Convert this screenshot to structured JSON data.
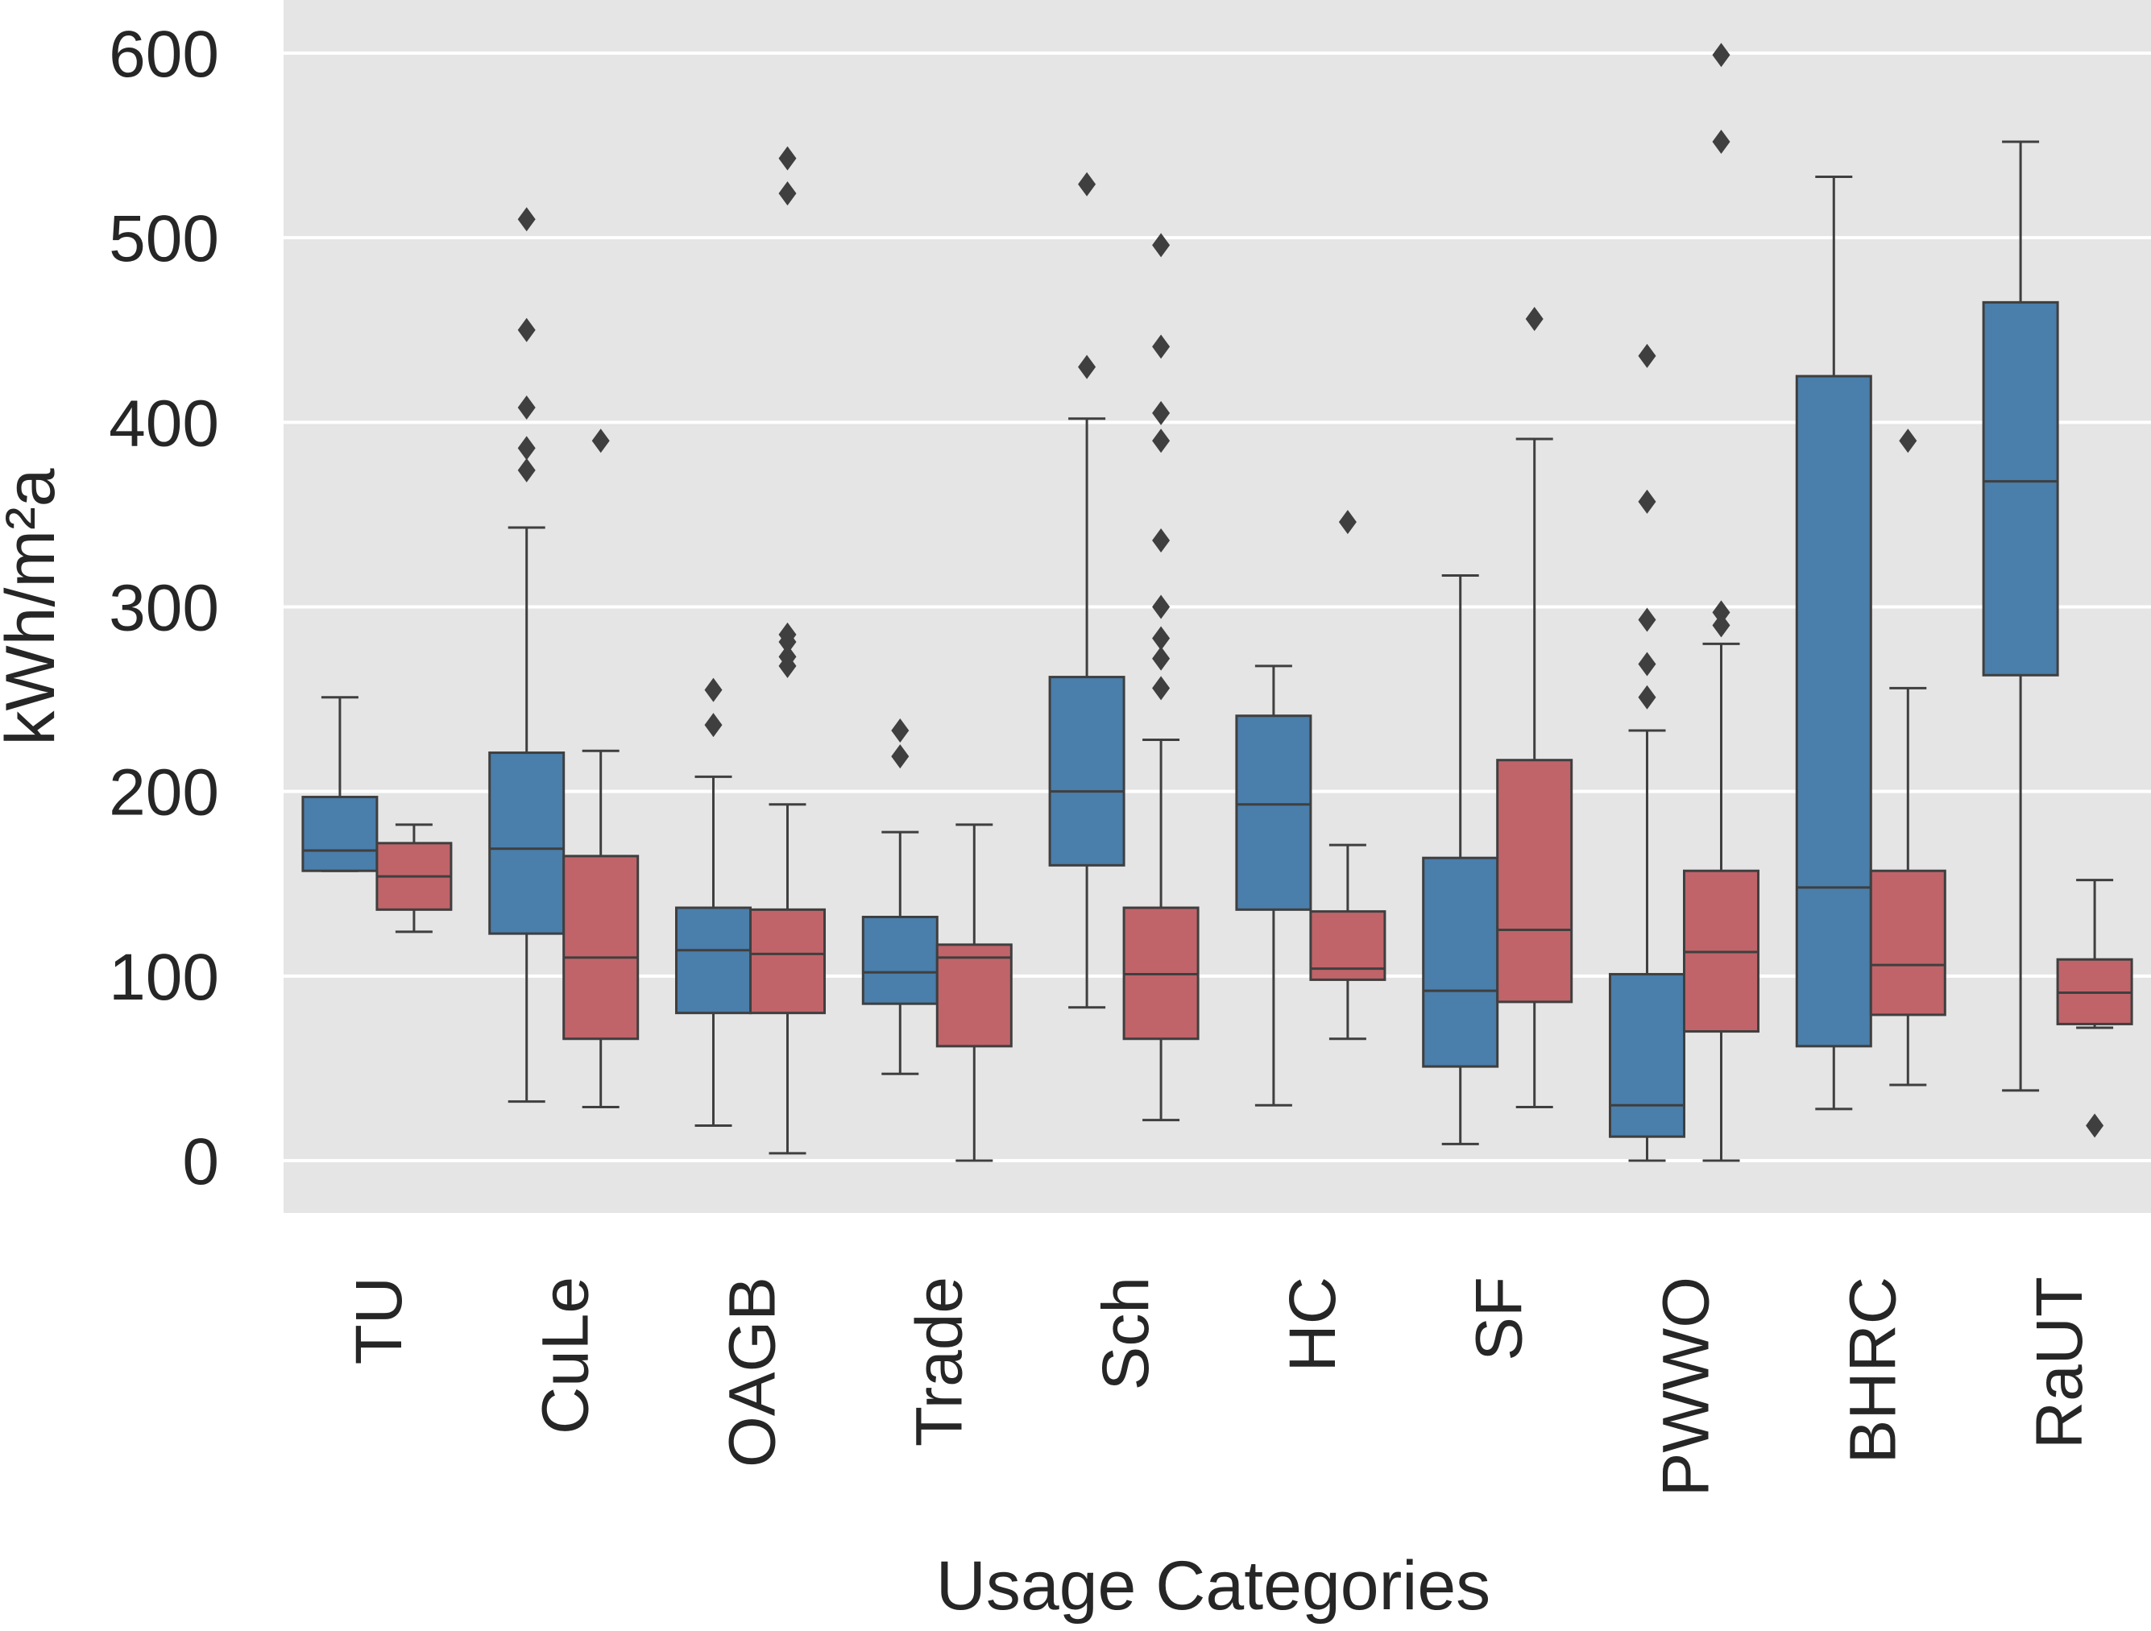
{
  "chart_data": {
    "type": "box",
    "xlabel": "Usage Categories",
    "ylabel": "kWh/m²a",
    "ylim": [
      -28,
      628
    ],
    "yticks": [
      0,
      100,
      200,
      300,
      400,
      500,
      600
    ],
    "grid": true,
    "legend": "none",
    "background": "#e5e5e5",
    "grid_color": "#ffffff",
    "categories": [
      "TU",
      "CuLe",
      "OAGB",
      "Trade",
      "Sch",
      "HC",
      "SF",
      "PWWO",
      "BHRC",
      "RaUT"
    ],
    "series": [
      {
        "color": "#4a7eab",
        "boxes": [
          {
            "whislo": 157,
            "q1": 157,
            "med": 168,
            "q3": 197,
            "whishi": 251,
            "fliers": []
          },
          {
            "whislo": 32,
            "q1": 123,
            "med": 169,
            "q3": 221,
            "whishi": 343,
            "fliers": [
              374,
              386,
              408,
              450,
              510
            ]
          },
          {
            "whislo": 19,
            "q1": 80,
            "med": 114,
            "q3": 137,
            "whishi": 208,
            "fliers": [
              236,
              255
            ]
          },
          {
            "whislo": 47,
            "q1": 85,
            "med": 102,
            "q3": 132,
            "whishi": 178,
            "fliers": [
              219,
              233
            ]
          },
          {
            "whislo": 83,
            "q1": 160,
            "med": 200,
            "q3": 262,
            "whishi": 402,
            "fliers": [
              430,
              529
            ]
          },
          {
            "whislo": 30,
            "q1": 136,
            "med": 193,
            "q3": 241,
            "whishi": 268,
            "fliers": []
          },
          {
            "whislo": 9,
            "q1": 51,
            "med": 92,
            "q3": 164,
            "whishi": 317,
            "fliers": []
          },
          {
            "whislo": 0,
            "q1": 13,
            "med": 30,
            "q3": 101,
            "whishi": 233,
            "fliers": [
              251,
              269,
              293,
              357,
              436
            ]
          },
          {
            "whislo": 28,
            "q1": 62,
            "med": 148,
            "q3": 425,
            "whishi": 533,
            "fliers": []
          },
          {
            "whislo": 38,
            "q1": 263,
            "med": 368,
            "q3": 465,
            "whishi": 552,
            "fliers": []
          }
        ]
      },
      {
        "color": "#c0646a",
        "boxes": [
          {
            "whislo": 124,
            "q1": 136,
            "med": 154,
            "q3": 172,
            "whishi": 182,
            "fliers": []
          },
          {
            "whislo": 29,
            "q1": 66,
            "med": 110,
            "q3": 165,
            "whishi": 222,
            "fliers": [
              390
            ]
          },
          {
            "whislo": 4,
            "q1": 80,
            "med": 112,
            "q3": 136,
            "whishi": 193,
            "fliers": [
              268,
              273,
              281,
              285,
              524,
              543
            ]
          },
          {
            "whislo": 0,
            "q1": 62,
            "med": 110,
            "q3": 117,
            "whishi": 182,
            "fliers": []
          },
          {
            "whislo": 22,
            "q1": 66,
            "med": 101,
            "q3": 137,
            "whishi": 228,
            "fliers": [
              256,
              272,
              283,
              300,
              336,
              390,
              405,
              441,
              496
            ]
          },
          {
            "whislo": 66,
            "q1": 98,
            "med": 104,
            "q3": 135,
            "whishi": 171,
            "fliers": [
              346
            ]
          },
          {
            "whislo": 29,
            "q1": 86,
            "med": 125,
            "q3": 217,
            "whishi": 391,
            "fliers": [
              456
            ]
          },
          {
            "whislo": 0,
            "q1": 70,
            "med": 113,
            "q3": 157,
            "whishi": 280,
            "fliers": [
              290,
              297,
              552,
              599
            ]
          },
          {
            "whislo": 41,
            "q1": 79,
            "med": 106,
            "q3": 157,
            "whishi": 256,
            "fliers": [
              390
            ]
          },
          {
            "whislo": 72,
            "q1": 74,
            "med": 91,
            "q3": 109,
            "whishi": 152,
            "fliers": [
              19
            ]
          }
        ]
      }
    ]
  }
}
